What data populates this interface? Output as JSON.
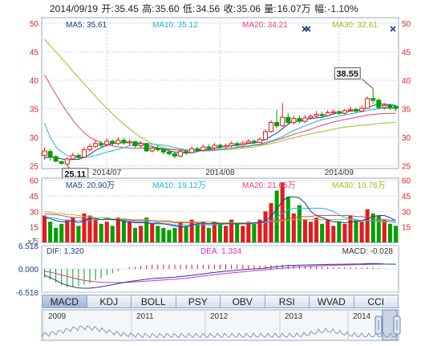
{
  "header": {
    "date": "2014/09/19",
    "open_label": "开:",
    "open": "35.45",
    "high_label": "高:",
    "high": "35.60",
    "low_label": "低:",
    "low": "34.56",
    "close_label": "收:",
    "close": "35.06",
    "vol_label": "量:",
    "vol": "16.07万",
    "chg_label": "幅:",
    "chg": "-1.10%"
  },
  "colors": {
    "up": "#e41a1c",
    "down": "#00a000",
    "ma5": "#1f3d8c",
    "ma10": "#21b3d6",
    "ma20": "#e8407a",
    "ma30": "#9bbf1e",
    "dif": "#1f3d8c",
    "dea": "#cc33cc",
    "grid": "#c8d4e2",
    "frame": "#9aa9bb",
    "axis_red": "#d22"
  },
  "chart_data": [
    {
      "type": "candlestick",
      "name": "price",
      "ma_labels": [
        {
          "key": "ma5",
          "text": "MA5: 35.61"
        },
        {
          "key": "ma10",
          "text": "MA10: 35.12"
        },
        {
          "key": "ma20",
          "text": "MA20: 34.21"
        },
        {
          "key": "ma30",
          "text": "MA30: 32.61"
        }
      ],
      "y_ticks": [
        25,
        30,
        35,
        40,
        45,
        50
      ],
      "ylim": [
        24.5,
        51
      ],
      "x_ticks": [
        {
          "index": 11,
          "label": "2014/07"
        },
        {
          "index": 31,
          "label": "2014/08"
        },
        {
          "index": 52,
          "label": "2014/09"
        }
      ],
      "annotations": [
        {
          "index": 4,
          "value": 25.11,
          "label": "25.11"
        },
        {
          "index": 58,
          "value": 38.55,
          "label": "38.55"
        }
      ],
      "candles": [
        [
          26.8,
          27.6,
          28.2,
          26.0
        ],
        [
          27.5,
          26.6,
          27.9,
          25.9
        ],
        [
          26.6,
          25.8,
          26.9,
          25.6
        ],
        [
          25.7,
          25.4,
          25.9,
          25.2
        ],
        [
          25.3,
          26.2,
          26.5,
          25.1
        ],
        [
          26.2,
          26.8,
          27.3,
          26.0
        ],
        [
          26.8,
          26.5,
          27.2,
          26.2
        ],
        [
          26.5,
          27.8,
          28.3,
          26.4
        ],
        [
          27.8,
          28.4,
          28.9,
          27.5
        ],
        [
          28.4,
          28.9,
          29.5,
          28.1
        ],
        [
          28.9,
          28.6,
          29.4,
          28.2
        ],
        [
          28.7,
          29.3,
          29.8,
          28.4
        ],
        [
          29.3,
          28.9,
          29.6,
          28.5
        ],
        [
          28.9,
          29.5,
          30.0,
          28.6
        ],
        [
          29.5,
          29.0,
          29.9,
          28.7
        ],
        [
          29.0,
          29.2,
          29.6,
          28.6
        ],
        [
          29.2,
          28.5,
          29.4,
          28.2
        ],
        [
          28.5,
          28.9,
          29.3,
          28.1
        ],
        [
          28.9,
          27.6,
          29.0,
          27.4
        ],
        [
          27.6,
          28.1,
          28.5,
          27.3
        ],
        [
          28.1,
          27.8,
          28.6,
          27.5
        ],
        [
          27.8,
          27.4,
          28.1,
          27.0
        ],
        [
          27.4,
          27.1,
          27.9,
          26.8
        ],
        [
          27.1,
          26.7,
          27.5,
          26.3
        ],
        [
          26.7,
          27.5,
          27.9,
          26.5
        ],
        [
          27.5,
          27.3,
          27.8,
          26.9
        ],
        [
          27.3,
          28.0,
          28.4,
          27.1
        ],
        [
          28.0,
          27.7,
          28.3,
          27.4
        ],
        [
          27.7,
          28.3,
          28.7,
          27.5
        ],
        [
          28.3,
          28.1,
          28.8,
          27.9
        ],
        [
          28.1,
          28.6,
          29.0,
          27.8
        ],
        [
          28.6,
          28.3,
          28.9,
          28.0
        ],
        [
          28.3,
          28.5,
          28.9,
          28.1
        ],
        [
          28.5,
          28.9,
          29.3,
          28.2
        ],
        [
          28.9,
          28.7,
          29.2,
          28.4
        ],
        [
          28.7,
          29.0,
          29.4,
          28.5
        ],
        [
          29.0,
          29.3,
          29.7,
          28.8
        ],
        [
          29.3,
          29.1,
          29.6,
          28.9
        ],
        [
          29.1,
          29.6,
          30.0,
          29.0
        ],
        [
          29.6,
          31.0,
          31.4,
          29.5
        ],
        [
          31.0,
          32.6,
          33.0,
          30.8
        ],
        [
          32.6,
          32.0,
          34.8,
          31.6
        ],
        [
          32.0,
          33.5,
          36.0,
          31.8
        ],
        [
          33.5,
          32.6,
          34.3,
          32.3
        ],
        [
          32.6,
          33.3,
          33.8,
          32.2
        ],
        [
          33.3,
          32.8,
          33.8,
          32.4
        ],
        [
          32.8,
          33.4,
          33.9,
          32.5
        ],
        [
          33.4,
          33.7,
          34.0,
          33.1
        ],
        [
          33.7,
          34.0,
          34.6,
          33.4
        ],
        [
          34.0,
          33.8,
          34.5,
          33.5
        ],
        [
          33.8,
          34.3,
          34.8,
          33.6
        ],
        [
          34.3,
          34.5,
          34.9,
          34.0
        ],
        [
          34.5,
          34.2,
          34.8,
          33.9
        ],
        [
          34.2,
          34.7,
          35.0,
          34.0
        ],
        [
          34.7,
          34.9,
          35.4,
          34.5
        ],
        [
          34.9,
          34.6,
          35.2,
          34.2
        ],
        [
          34.6,
          35.1,
          35.6,
          34.4
        ],
        [
          35.1,
          36.8,
          37.2,
          35.0
        ],
        [
          36.8,
          36.5,
          38.55,
          35.9
        ],
        [
          36.5,
          35.2,
          36.9,
          34.9
        ],
        [
          35.2,
          35.6,
          36.0,
          34.9
        ],
        [
          35.6,
          35.2,
          35.9,
          34.8
        ],
        [
          35.45,
          35.06,
          35.6,
          34.56
        ]
      ],
      "ma5": [
        26.4,
        26.5,
        26.4,
        26.2,
        26.0,
        26.1,
        26.1,
        26.5,
        27.0,
        27.7,
        28.2,
        28.6,
        28.9,
        29.0,
        29.1,
        29.2,
        29.0,
        29.0,
        28.6,
        28.4,
        28.1,
        28.0,
        27.6,
        27.4,
        27.3,
        27.2,
        27.3,
        27.5,
        27.8,
        27.9,
        28.1,
        28.2,
        28.4,
        28.5,
        28.6,
        28.7,
        28.9,
        29.0,
        29.2,
        29.6,
        30.2,
        30.7,
        31.5,
        32.3,
        32.8,
        32.8,
        33.1,
        33.3,
        33.4,
        33.5,
        33.8,
        34.1,
        34.3,
        34.4,
        34.6,
        34.6,
        34.8,
        35.2,
        35.6,
        35.8,
        35.8,
        35.7,
        35.61
      ],
      "ma10": [
        32.5,
        30.0,
        28.3,
        27.4,
        26.8,
        26.5,
        26.4,
        26.4,
        26.6,
        26.8,
        27.1,
        27.4,
        27.6,
        27.9,
        28.2,
        28.5,
        28.7,
        28.8,
        28.9,
        28.8,
        28.7,
        28.6,
        28.4,
        28.2,
        28.0,
        27.8,
        27.7,
        27.6,
        27.6,
        27.6,
        27.7,
        27.8,
        28.0,
        28.1,
        28.3,
        28.4,
        28.5,
        28.7,
        28.8,
        29.1,
        29.4,
        29.7,
        30.1,
        30.7,
        31.2,
        31.6,
        32.0,
        32.4,
        32.8,
        33.1,
        33.3,
        33.5,
        33.7,
        33.9,
        34.1,
        34.3,
        34.5,
        34.7,
        34.9,
        35.0,
        35.1,
        35.1,
        35.12
      ],
      "ma20": [
        41.0,
        39.2,
        37.5,
        35.9,
        34.4,
        33.0,
        31.8,
        30.8,
        30.0,
        29.5,
        29.0,
        28.7,
        28.5,
        28.3,
        28.2,
        28.1,
        28.1,
        28.1,
        28.1,
        28.1,
        28.0,
        27.9,
        27.9,
        27.8,
        27.7,
        27.7,
        27.7,
        27.7,
        27.8,
        27.8,
        27.8,
        27.9,
        28.0,
        28.1,
        28.2,
        28.3,
        28.4,
        28.6,
        28.7,
        28.9,
        29.2,
        29.5,
        29.8,
        30.2,
        30.5,
        30.8,
        31.1,
        31.4,
        31.8,
        32.1,
        32.4,
        32.7,
        32.9,
        33.1,
        33.3,
        33.5,
        33.7,
        33.9,
        34.0,
        34.1,
        34.15,
        34.2,
        34.21
      ],
      "ma30": [
        47.2,
        46.1,
        45.0,
        43.9,
        42.8,
        41.6,
        40.5,
        39.4,
        38.3,
        37.2,
        36.1,
        35.1,
        34.1,
        33.2,
        32.3,
        31.5,
        30.7,
        30.0,
        29.4,
        28.9,
        28.5,
        28.2,
        28.0,
        27.9,
        27.8,
        27.8,
        27.7,
        27.7,
        27.7,
        27.7,
        27.7,
        27.8,
        27.8,
        27.9,
        28.0,
        28.1,
        28.2,
        28.3,
        28.5,
        28.7,
        28.9,
        29.1,
        29.4,
        29.7,
        29.9,
        30.2,
        30.4,
        30.6,
        30.8,
        31.0,
        31.2,
        31.4,
        31.6,
        31.8,
        31.9,
        32.0,
        32.1,
        32.2,
        32.3,
        32.4,
        32.5,
        32.55,
        32.61
      ]
    },
    {
      "type": "bar",
      "name": "volume",
      "unit_label": "x万",
      "ma_labels": [
        {
          "key": "ma5",
          "text": "MA5: 20.90万"
        },
        {
          "key": "ma10",
          "text": "MA10: 19.12万"
        },
        {
          "key": "ma20",
          "text": "MA20: 21.05万"
        },
        {
          "key": "ma30",
          "text": "MA30: 19.76万"
        }
      ],
      "y_ticks": [
        15,
        30,
        45,
        60
      ],
      "ylim": [
        0,
        62
      ],
      "values": [
        26,
        20,
        14,
        18,
        22,
        24,
        16,
        28,
        26,
        22,
        18,
        20,
        16,
        24,
        22,
        20,
        14,
        16,
        24,
        18,
        16,
        14,
        12,
        14,
        20,
        16,
        22,
        18,
        20,
        14,
        20,
        18,
        16,
        22,
        18,
        16,
        20,
        18,
        22,
        30,
        38,
        50,
        58,
        44,
        28,
        36,
        22,
        20,
        24,
        18,
        22,
        16,
        20,
        18,
        26,
        22,
        20,
        32,
        28,
        26,
        22,
        18,
        16.07
      ],
      "ma5": [
        24,
        23,
        21,
        20,
        20,
        21,
        19,
        21,
        23,
        23,
        22,
        23,
        22,
        22,
        20,
        20,
        19,
        19,
        19,
        18,
        18,
        18,
        17,
        16,
        15,
        15,
        17,
        18,
        19,
        18,
        19,
        18,
        18,
        18,
        18,
        18,
        18,
        19,
        19,
        21,
        25,
        32,
        40,
        44,
        44,
        43,
        38,
        30,
        26,
        24,
        22,
        20,
        20,
        19,
        20,
        20,
        21,
        23,
        25,
        26,
        26,
        24,
        20.9
      ],
      "ma10": [
        25,
        24,
        23,
        22,
        21,
        21,
        21,
        21,
        21,
        22,
        22,
        22,
        22,
        22,
        21,
        21,
        20,
        20,
        20,
        19,
        19,
        18,
        18,
        17,
        17,
        17,
        17,
        17,
        17,
        17,
        17,
        17,
        18,
        18,
        18,
        18,
        18,
        18,
        19,
        20,
        21,
        24,
        28,
        31,
        33,
        33,
        33,
        33,
        33,
        33,
        32,
        30,
        27,
        24,
        23,
        22,
        21,
        21,
        21,
        21,
        21,
        20,
        19.12
      ],
      "ma20": [
        28,
        27,
        27,
        26,
        25,
        24,
        24,
        23,
        23,
        23,
        22,
        22,
        22,
        22,
        22,
        22,
        21,
        21,
        21,
        21,
        20,
        20,
        20,
        19,
        19,
        19,
        19,
        19,
        18,
        18,
        18,
        18,
        18,
        18,
        18,
        18,
        18,
        18,
        19,
        19,
        20,
        21,
        22,
        23,
        24,
        25,
        25,
        25,
        26,
        26,
        26,
        26,
        26,
        26,
        26,
        25,
        25,
        24,
        23,
        22,
        22,
        21.5,
        21.05
      ],
      "ma30": [
        30,
        29,
        28,
        28,
        27,
        27,
        26,
        25,
        25,
        24,
        24,
        24,
        23,
        23,
        23,
        22,
        22,
        22,
        22,
        21,
        21,
        21,
        21,
        20,
        20,
        20,
        20,
        20,
        20,
        20,
        20,
        19,
        19,
        19,
        19,
        19,
        19,
        19,
        19,
        19,
        20,
        20,
        21,
        21,
        22,
        22,
        22,
        22,
        22,
        22,
        22,
        22,
        22,
        22,
        22,
        21,
        21,
        21,
        21,
        20,
        20,
        19.9,
        19.76
      ]
    },
    {
      "type": "bar",
      "name": "macd",
      "dif_label": "DIF: 1.320",
      "dea_label": "DEA: 1.334",
      "macd_label": "MACD: -0.028",
      "y_ticks": [
        {
          "value": 6.518,
          "label": "6.518"
        },
        {
          "value": 0,
          "label": "0.000"
        },
        {
          "value": -6.518,
          "label": "-6.518"
        }
      ],
      "ylim": [
        -6.518,
        6.518
      ],
      "dif": [
        -1.8,
        -2.4,
        -3.2,
        -4.0,
        -4.6,
        -5.0,
        -5.3,
        -5.4,
        -5.4,
        -5.2,
        -5.0,
        -4.7,
        -4.4,
        -4.1,
        -3.8,
        -3.5,
        -3.3,
        -3.1,
        -2.9,
        -2.7,
        -2.6,
        -2.5,
        -2.4,
        -2.3,
        -2.1,
        -2.0,
        -1.8,
        -1.6,
        -1.4,
        -1.2,
        -1.0,
        -0.8,
        -0.6,
        -0.5,
        -0.35,
        -0.2,
        -0.1,
        0.0,
        0.1,
        0.25,
        0.45,
        0.6,
        0.8,
        0.95,
        1.0,
        1.05,
        1.1,
        1.15,
        1.2,
        1.2,
        1.25,
        1.3,
        1.3,
        1.32,
        1.35,
        1.38,
        1.4,
        1.45,
        1.5,
        1.45,
        1.38,
        1.34,
        1.32
      ],
      "dea": [
        -0.6,
        -0.9,
        -1.3,
        -1.7,
        -2.1,
        -2.5,
        -2.9,
        -3.2,
        -3.4,
        -3.6,
        -3.7,
        -3.8,
        -3.8,
        -3.8,
        -3.8,
        -3.7,
        -3.6,
        -3.5,
        -3.4,
        -3.3,
        -3.2,
        -3.1,
        -3.0,
        -2.9,
        -2.7,
        -2.6,
        -2.4,
        -2.2,
        -2.0,
        -1.8,
        -1.6,
        -1.4,
        -1.25,
        -1.1,
        -0.95,
        -0.8,
        -0.65,
        -0.5,
        -0.38,
        -0.25,
        -0.1,
        0.05,
        0.2,
        0.35,
        0.48,
        0.58,
        0.68,
        0.76,
        0.84,
        0.9,
        0.96,
        1.02,
        1.06,
        1.1,
        1.14,
        1.18,
        1.22,
        1.26,
        1.3,
        1.32,
        1.34,
        1.34,
        1.334
      ]
    }
  ],
  "indicator_tabs": [
    "MACD",
    "KDJ",
    "BOLL",
    "PSY",
    "OBV",
    "RSI",
    "WVAD",
    "CCI"
  ],
  "active_tab": "MACD",
  "navigator": {
    "years": [
      "2009",
      "2011",
      "2012",
      "2013",
      "2014"
    ]
  }
}
